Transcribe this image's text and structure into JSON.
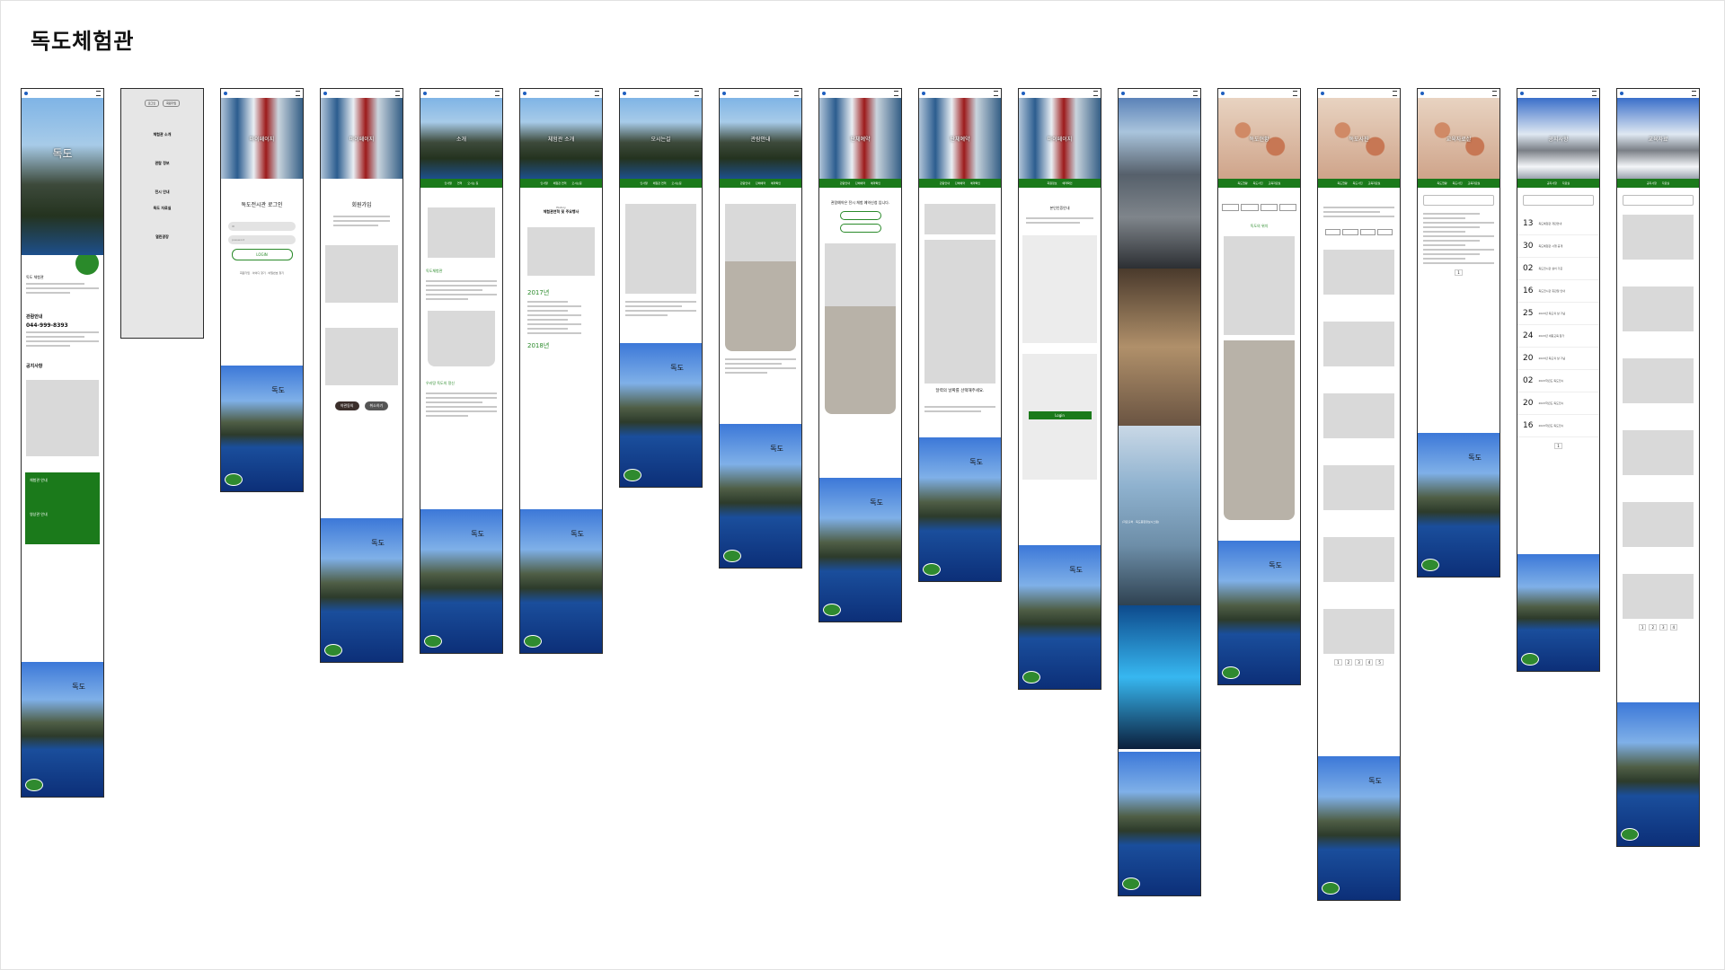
{
  "page_title": "독도체험관",
  "screens": {
    "s1": {
      "hero": "독도",
      "section1": "독도 체험관",
      "contact_title": "관람안내",
      "phone": "044-999-8393",
      "notice": "공지사항",
      "card1": "체험관 안내",
      "card2": "영상관 안내",
      "footer": "독도"
    },
    "s2": {
      "tabs": [
        "로그인",
        "회원가입"
      ],
      "menu": [
        "체험관 소개",
        "관람 정보",
        "전시 안내",
        "독도 자료실",
        "열린광장"
      ]
    },
    "s3": {
      "hero": "마이페이지",
      "heading": "독도전시관 로그인",
      "id_placeholder": "ID",
      "pw_placeholder": "password",
      "login_btn": "LOGIN",
      "links": "회원가입 · 아이디 찾기 · 비밀번호 찾기"
    },
    "s4": {
      "hero": "마이페이지",
      "heading": "회원가입",
      "btn_agree": "약관동의",
      "btn_cancel": "취소하기"
    },
    "s5": {
      "hero": "소개",
      "nav": [
        "인사말",
        "연혁",
        "오시는 길"
      ],
      "highlight": "독도체험관",
      "highlight2": "우리땅 독도의 정신"
    },
    "s6": {
      "hero": "체험관 소개",
      "history": "History",
      "heading": "체험관연혁 및 주요행사",
      "year1": "2017년",
      "year2": "2018년"
    },
    "s7": {
      "hero": "오시는길"
    },
    "s8": {
      "hero": "관람안내",
      "nav": [
        "관람안내",
        "단체예약",
        "예약확인"
      ]
    },
    "s9": {
      "hero": "단체예약",
      "intro": "관람예약은 전시 체험 예약신청 입니다."
    },
    "s10": {
      "hero": "단체예약",
      "prompt": "달력의 날짜를 선택해주세요."
    },
    "s11": {
      "hero": "마이페이지",
      "heading": "본인인증안내",
      "btn": "Login"
    },
    "s12": {
      "caption": "(자료출처 · 독도종합정보시스템)"
    },
    "s13": {
      "hero": "독도현황",
      "highlight": "독도의 위치"
    },
    "s14": {
      "hero": "독도사진"
    },
    "s15": {
      "hero": "교육자료실"
    },
    "s16": {
      "hero": "공지사항",
      "numbers": [
        "13",
        "30",
        "02",
        "16",
        "25",
        "24",
        "20",
        "02",
        "20",
        "16"
      ]
    },
    "s17": {
      "hero": "교육자료"
    }
  }
}
